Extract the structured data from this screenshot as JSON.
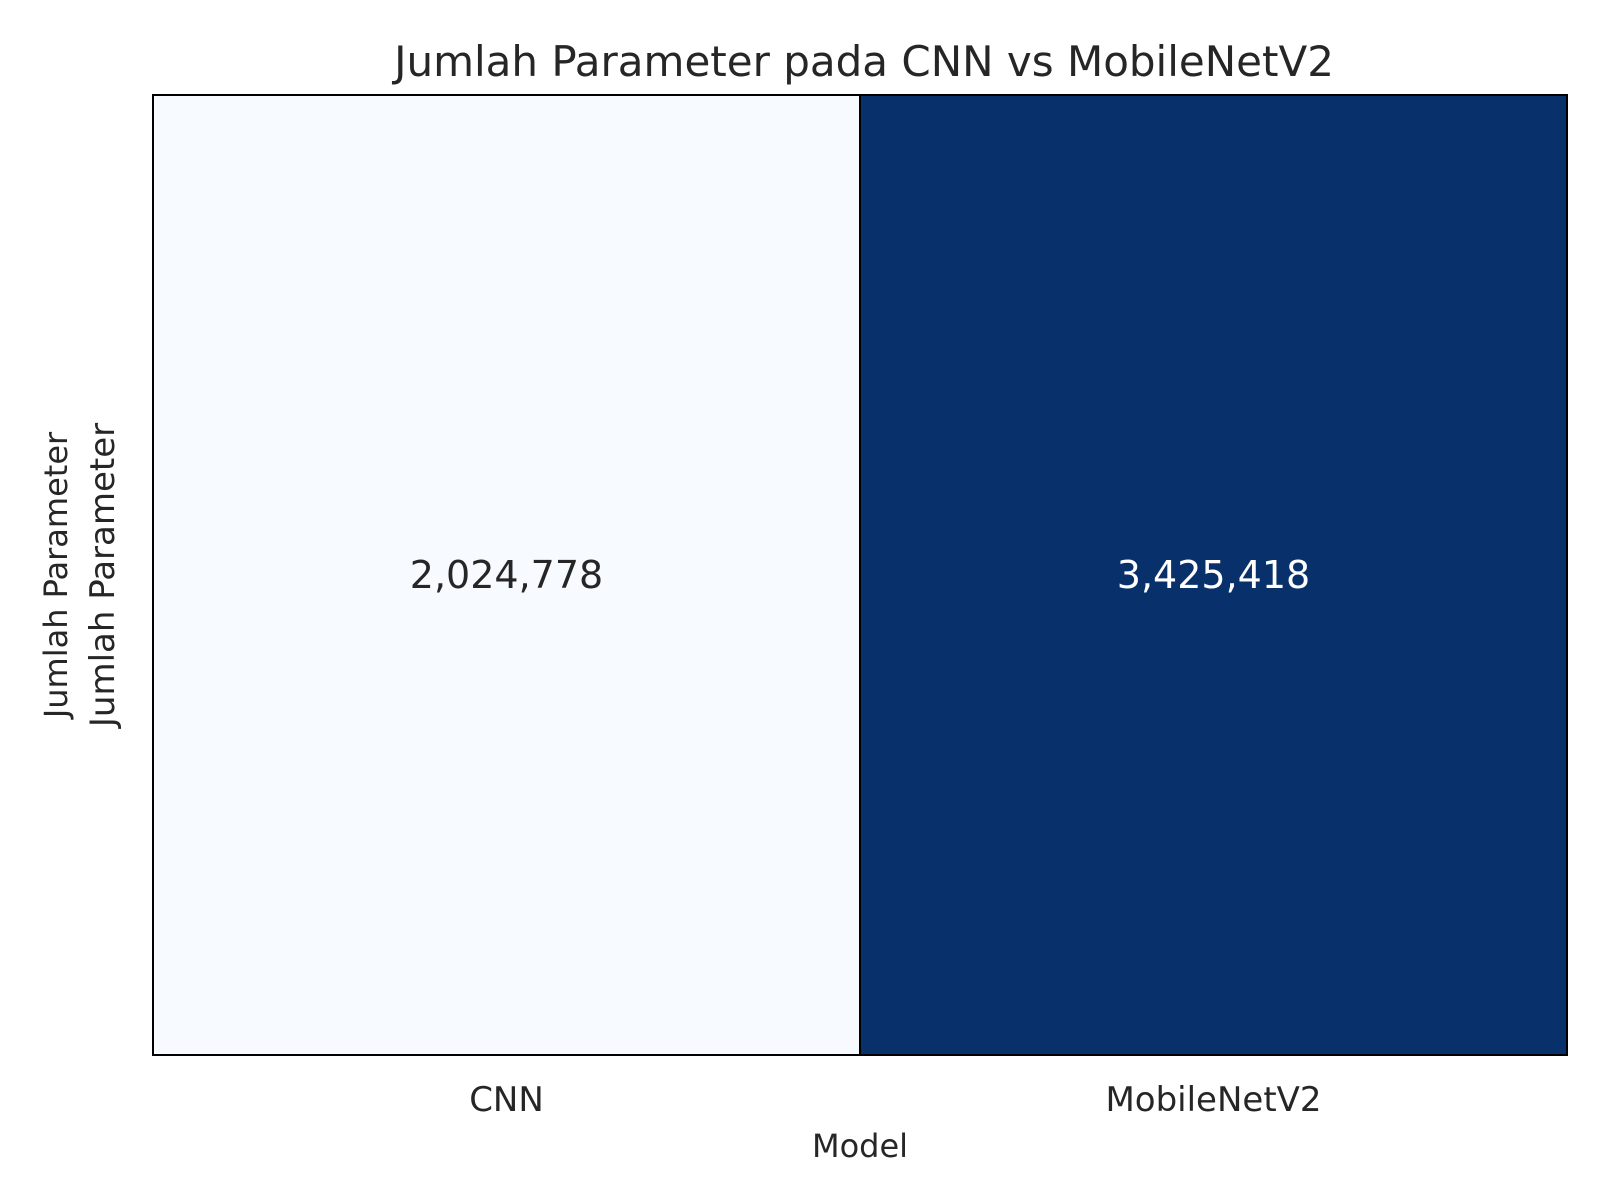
{
  "chart_data": {
    "type": "heatmap",
    "title": "Jumlah Parameter pada CNN vs MobileNetV2",
    "xlabel": "Model",
    "ylabel": "Jumlah Parameter",
    "row_labels": [
      "Jumlah Parameter"
    ],
    "categories": [
      "CNN",
      "MobileNetV2"
    ],
    "values": [
      [
        2024778,
        3425418
      ]
    ],
    "annotations": [
      [
        "2,024,778",
        "3,425,418"
      ]
    ],
    "colormap": "Blues",
    "color_min": "#f7fbff",
    "color_max": "#08306b",
    "vmin": 2024778,
    "vmax": 3425418,
    "colorbar": false
  }
}
